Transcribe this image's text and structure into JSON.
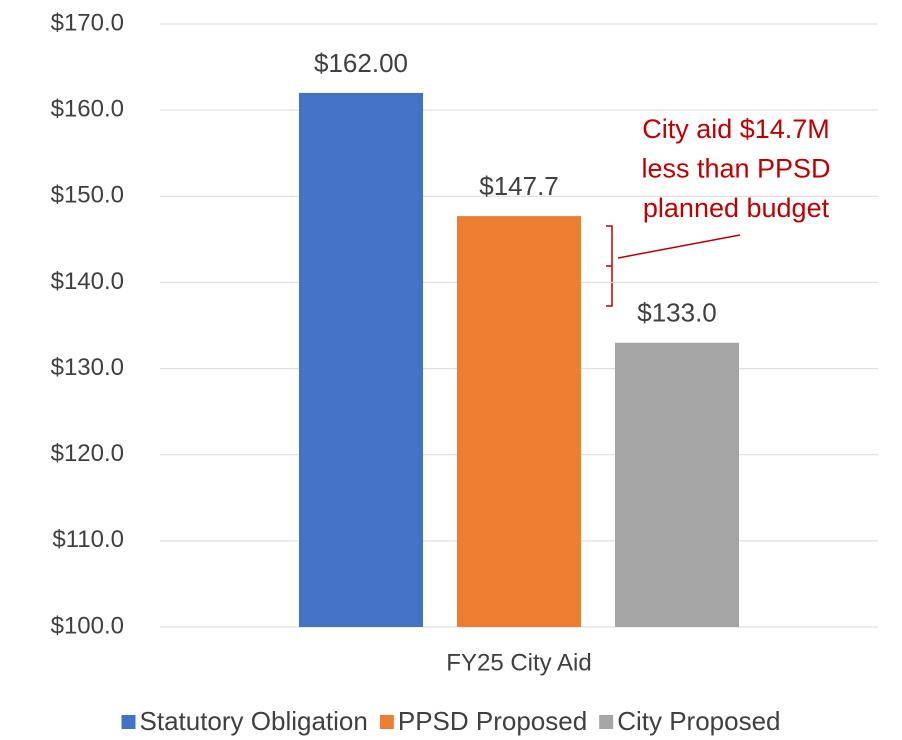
{
  "chart_data": {
    "type": "bar",
    "categories": [
      "FY25 City Aid"
    ],
    "series": [
      {
        "name": "Statutory Obligation",
        "color": "#4472c4",
        "values": [
          162.0
        ],
        "value_labels": [
          "$162.00"
        ]
      },
      {
        "name": "PPSD Proposed",
        "color": "#ed7d31",
        "values": [
          147.7
        ],
        "value_labels": [
          "$147.7"
        ]
      },
      {
        "name": "City Proposed",
        "color": "#a5a5a5",
        "values": [
          133.0
        ],
        "value_labels": [
          "$133.0"
        ]
      }
    ],
    "ylim": [
      100,
      170
    ],
    "yticks": [
      {
        "value": 100,
        "label": "$100.0"
      },
      {
        "value": 110,
        "label": "$110.0"
      },
      {
        "value": 120,
        "label": "$120.0"
      },
      {
        "value": 130,
        "label": "$130.0"
      },
      {
        "value": 140,
        "label": "$140.0"
      },
      {
        "value": 150,
        "label": "$150.0"
      },
      {
        "value": 160,
        "label": "$160.0"
      },
      {
        "value": 170,
        "label": "$170.0"
      }
    ],
    "grid": true,
    "legend": "bottom",
    "annotation": [
      "City aid $14.7M",
      "less than PPSD",
      "planned budget"
    ],
    "annotation_color": "#c00000"
  }
}
